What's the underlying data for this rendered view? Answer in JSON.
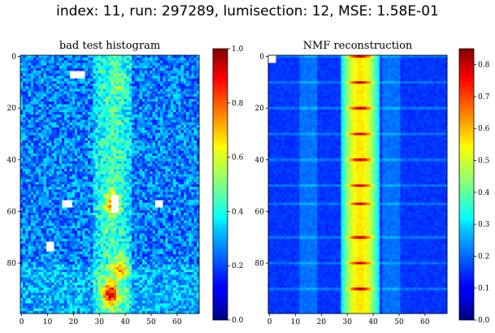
{
  "figure": {
    "suptitle": "index: 11, run: 297289, lumisection: 12, MSE: 1.58E-01"
  },
  "colors": {
    "colormap": "jet",
    "empty_bin": "#ffffff",
    "axes_edge": "#000000"
  },
  "chart_data": [
    {
      "type": "heatmap",
      "title": "bad test histogram",
      "colormap": "jet",
      "n_cols": 69,
      "n_rows": 100,
      "xlim": [
        -0.5,
        68.5
      ],
      "ylim": [
        99.5,
        -0.5
      ],
      "y_inverted": true,
      "xticks": [
        0,
        10,
        20,
        30,
        40,
        50,
        60
      ],
      "yticks": [
        0,
        20,
        40,
        60,
        80
      ],
      "xtick_labels": [
        "0",
        "10",
        "20",
        "30",
        "40",
        "50",
        "60"
      ],
      "ytick_labels": [
        "0",
        "20",
        "40",
        "60",
        "80"
      ],
      "colorbar": {
        "range": [
          0.0,
          1.0
        ],
        "ticks": [
          0.0,
          0.2,
          0.4,
          0.6,
          0.8,
          1.0
        ],
        "tick_labels": [
          "0.0",
          "0.2",
          "0.4",
          "0.6",
          "0.8",
          "1.0"
        ]
      },
      "approx_profile": {
        "background_level": 0.25,
        "central_band_columns": [
          28,
          42
        ],
        "central_band_level": 0.45,
        "hot_spots": [
          {
            "x": 34,
            "y": 92,
            "value": 0.85
          },
          {
            "x": 38,
            "y": 82,
            "value": 0.7
          },
          {
            "x": 35,
            "y": 57,
            "value": 0.75
          },
          {
            "x": 38,
            "y": 10,
            "value": 0.55
          }
        ]
      },
      "empty_regions": [
        {
          "x": [
            19,
            24
          ],
          "y": [
            6,
            8
          ]
        },
        {
          "x": [
            35,
            37
          ],
          "y": [
            54,
            60
          ]
        },
        {
          "x": [
            16,
            19
          ],
          "y": [
            56,
            58
          ]
        },
        {
          "x": [
            52,
            54
          ],
          "y": [
            56,
            58
          ]
        },
        {
          "x": [
            10,
            12
          ],
          "y": [
            72,
            75
          ]
        }
      ]
    },
    {
      "type": "heatmap",
      "title": "NMF reconstruction",
      "colormap": "jet",
      "n_cols": 69,
      "n_rows": 100,
      "xlim": [
        -0.5,
        68.5
      ],
      "ylim": [
        99.5,
        -0.5
      ],
      "y_inverted": true,
      "xticks": [
        0,
        10,
        20,
        30,
        40,
        50,
        60
      ],
      "yticks": [
        0,
        20,
        40,
        60,
        80
      ],
      "xtick_labels": [
        "0",
        "10",
        "20",
        "30",
        "40",
        "50",
        "60"
      ],
      "ytick_labels": [
        "0",
        "20",
        "40",
        "60",
        "80"
      ],
      "colorbar": {
        "range": [
          0.0,
          0.85
        ],
        "ticks": [
          0.0,
          0.1,
          0.2,
          0.3,
          0.4,
          0.5,
          0.6,
          0.7,
          0.8
        ],
        "tick_labels": [
          "0.0",
          "0.1",
          "0.2",
          "0.3",
          "0.4",
          "0.5",
          "0.6",
          "0.7",
          "0.8"
        ]
      },
      "approx_profile": {
        "background_level": 0.15,
        "central_band_columns": [
          28,
          42
        ],
        "central_band_level": 0.55,
        "bright_rows": [
          0,
          10,
          20,
          30,
          40,
          50,
          57,
          70,
          80,
          90
        ],
        "bright_row_level": 0.8
      },
      "empty_regions": [
        {
          "x": [
            0,
            2
          ],
          "y": [
            0,
            2
          ]
        }
      ]
    }
  ]
}
